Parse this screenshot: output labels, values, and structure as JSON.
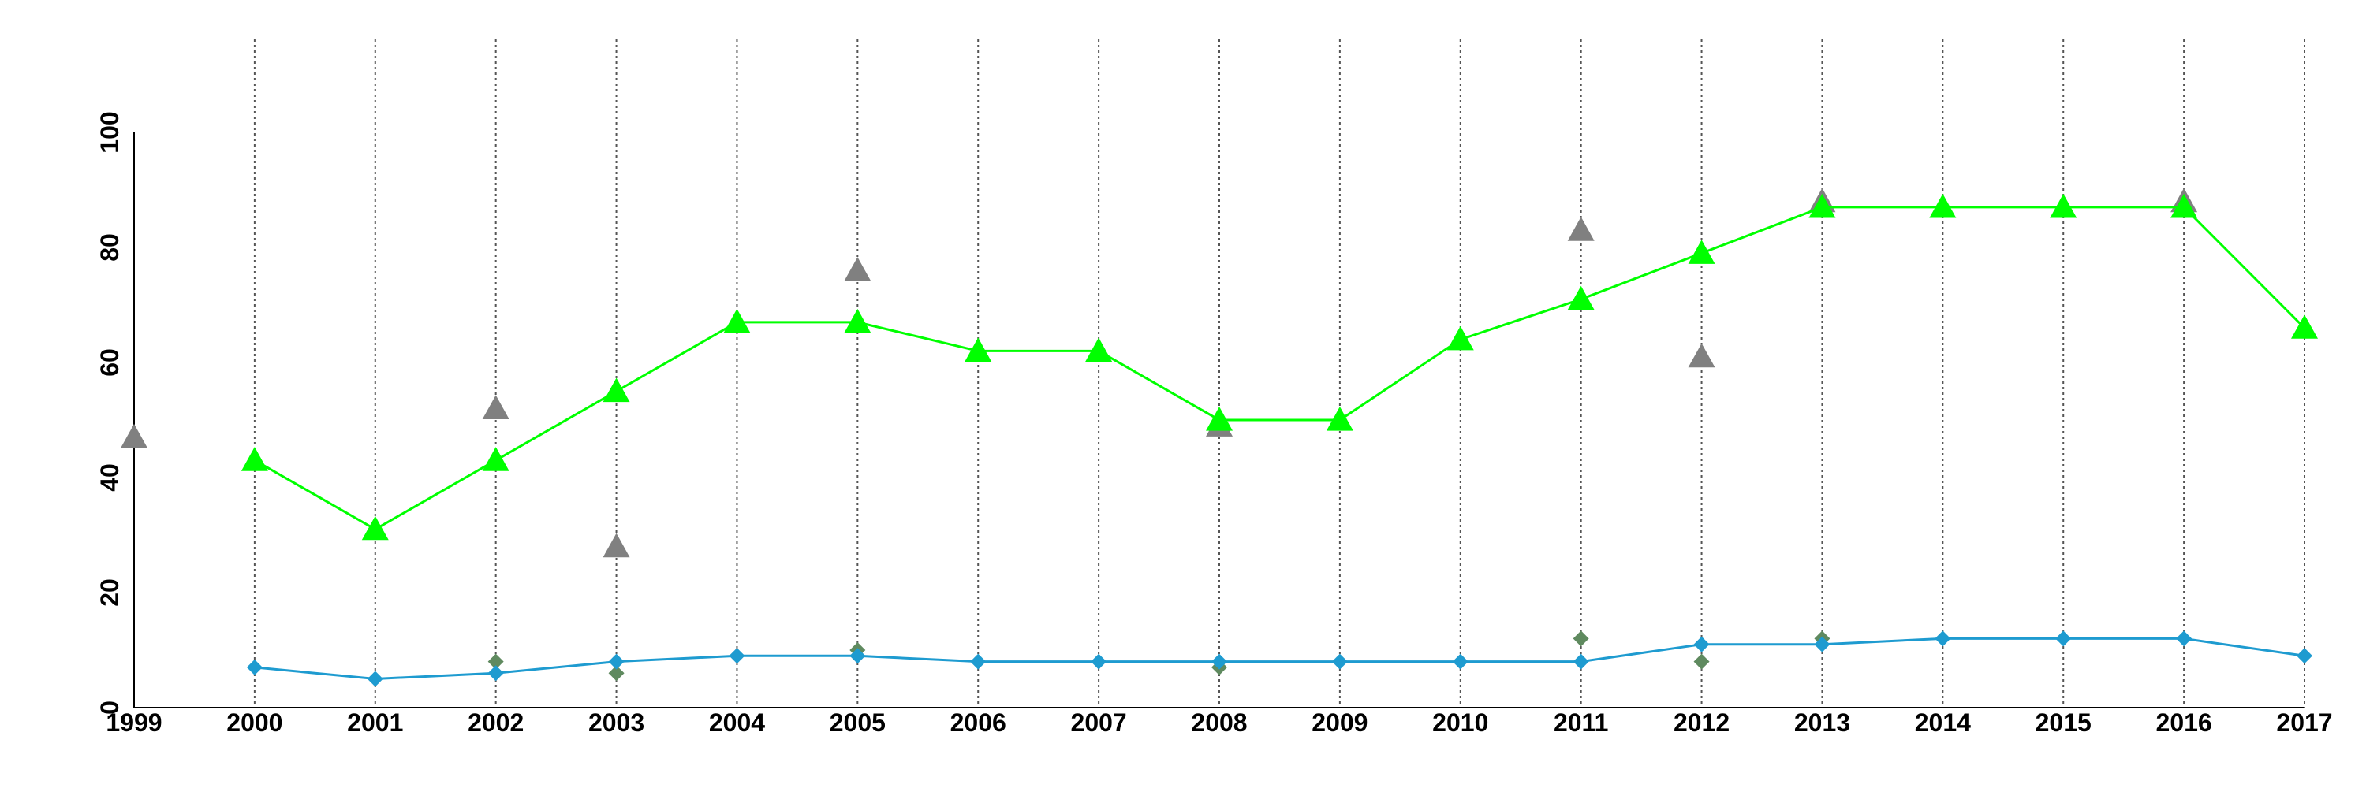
{
  "chart_data": {
    "type": "line",
    "title": "",
    "xlabel": "",
    "ylabel": "",
    "x": [
      "1999",
      "2000",
      "2001",
      "2002",
      "2003",
      "2004",
      "2005",
      "2006",
      "2007",
      "2008",
      "2009",
      "2010",
      "2011",
      "2012",
      "2013",
      "2014",
      "2015",
      "2016",
      "2017"
    ],
    "ylim": [
      0,
      100
    ],
    "yticks": [
      "0",
      "20",
      "40",
      "60",
      "80",
      "100"
    ],
    "grid": "vertical-dotted",
    "series": [
      {
        "color": "#00ff00",
        "marker": "triangle",
        "line": true,
        "values": [
          null,
          43,
          31,
          43,
          55,
          67,
          67,
          62,
          62,
          50,
          50,
          64,
          71,
          79,
          87,
          87,
          87,
          87,
          66
        ]
      },
      {
        "color": "#1e9bd0",
        "marker": "diamond",
        "line": true,
        "values": [
          null,
          7,
          5,
          6,
          8,
          9,
          9,
          8,
          8,
          8,
          8,
          8,
          8,
          11,
          11,
          12,
          12,
          12,
          9
        ]
      },
      {
        "color": "#808080",
        "marker": "triangle",
        "line": false,
        "points": [
          [
            "1999",
            47
          ],
          [
            "2002",
            52
          ],
          [
            "2003",
            28
          ],
          [
            "2005",
            76
          ],
          [
            "2008",
            49
          ],
          [
            "2011",
            83
          ],
          [
            "2012",
            61
          ],
          [
            "2013",
            88
          ],
          [
            "2016",
            88
          ]
        ]
      },
      {
        "color": "#5f8a5f",
        "marker": "diamond",
        "line": false,
        "points": [
          [
            "2002",
            8
          ],
          [
            "2003",
            6
          ],
          [
            "2005",
            10
          ],
          [
            "2008",
            7
          ],
          [
            "2011",
            12
          ],
          [
            "2012",
            8
          ],
          [
            "2013",
            12
          ]
        ]
      }
    ]
  }
}
